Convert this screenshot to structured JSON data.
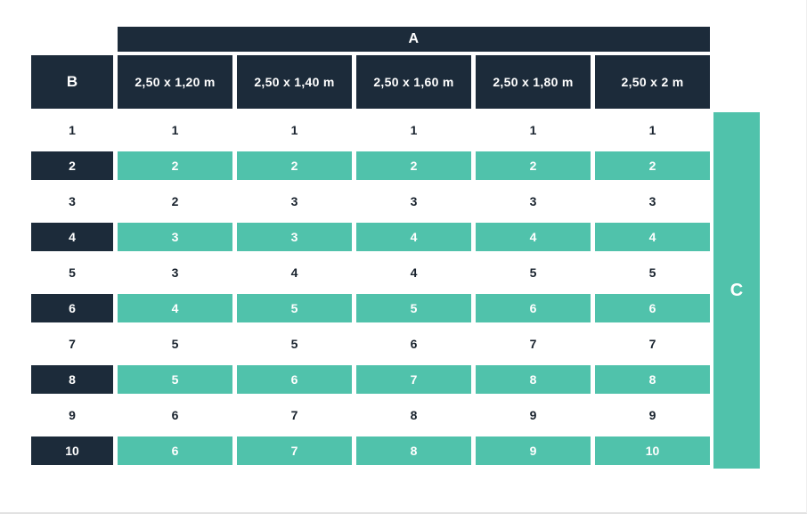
{
  "table": {
    "col_group_label": "A",
    "row_group_label": "B",
    "side_label": "C",
    "columns": [
      "2,50 x 1,20 m",
      "2,50 x 1,40 m",
      "2,50 x 1,60 m",
      "2,50 x 1,80 m",
      "2,50 x 2 m"
    ],
    "rows": [
      {
        "label": "1",
        "highlight": false,
        "values": [
          "1",
          "1",
          "1",
          "1",
          "1"
        ]
      },
      {
        "label": "2",
        "highlight": true,
        "values": [
          "2",
          "2",
          "2",
          "2",
          "2"
        ]
      },
      {
        "label": "3",
        "highlight": false,
        "values": [
          "2",
          "3",
          "3",
          "3",
          "3"
        ]
      },
      {
        "label": "4",
        "highlight": true,
        "values": [
          "3",
          "3",
          "4",
          "4",
          "4"
        ]
      },
      {
        "label": "5",
        "highlight": false,
        "values": [
          "3",
          "4",
          "4",
          "5",
          "5"
        ]
      },
      {
        "label": "6",
        "highlight": true,
        "values": [
          "4",
          "5",
          "5",
          "6",
          "6"
        ]
      },
      {
        "label": "7",
        "highlight": false,
        "values": [
          "5",
          "5",
          "6",
          "7",
          "7"
        ]
      },
      {
        "label": "8",
        "highlight": true,
        "values": [
          "5",
          "6",
          "7",
          "8",
          "8"
        ]
      },
      {
        "label": "9",
        "highlight": false,
        "values": [
          "6",
          "7",
          "8",
          "9",
          "9"
        ]
      },
      {
        "label": "10",
        "highlight": true,
        "values": [
          "6",
          "7",
          "8",
          "9",
          "10"
        ]
      }
    ]
  },
  "colors": {
    "navy": "#1c2b3a",
    "teal": "#50c2ab",
    "background": "#ffffff",
    "text_dark": "#18222d"
  },
  "chart_data": {
    "type": "table",
    "title": "",
    "column_group_label": "A",
    "row_group_label": "B",
    "side_label": "C",
    "columns": [
      "B",
      "2,50 x 1,20 m",
      "2,50 x 1,40 m",
      "2,50 x 1,60 m",
      "2,50 x 1,80 m",
      "2,50 x 2 m"
    ],
    "rows": [
      [
        1,
        1,
        1,
        1,
        1,
        1
      ],
      [
        2,
        2,
        2,
        2,
        2,
        2
      ],
      [
        3,
        2,
        3,
        3,
        3,
        3
      ],
      [
        4,
        3,
        3,
        4,
        4,
        4
      ],
      [
        5,
        3,
        4,
        4,
        5,
        5
      ],
      [
        6,
        4,
        5,
        5,
        6,
        6
      ],
      [
        7,
        5,
        5,
        6,
        7,
        7
      ],
      [
        8,
        5,
        6,
        7,
        8,
        8
      ],
      [
        9,
        6,
        7,
        8,
        9,
        9
      ],
      [
        10,
        6,
        7,
        8,
        9,
        10
      ]
    ],
    "layout_hints": {
      "highlighted_rows": [
        2,
        4,
        6,
        8,
        10
      ],
      "highlight_color": "#50c2ab",
      "header_color": "#1c2b3a",
      "legend_position": "none",
      "grid": "off"
    }
  }
}
